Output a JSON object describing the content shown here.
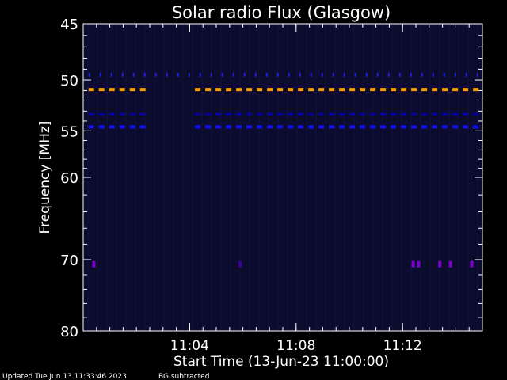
{
  "chart_data": {
    "type": "heatmap",
    "title": "Solar radio Flux (Glasgow)",
    "ylabel": "Frequency [MHz]",
    "xlabel": "Start Time (13-Jun-23 11:00:00)",
    "y_scale": "log",
    "y_axis_direction": "inverted",
    "ylim": [
      45,
      80
    ],
    "y_ticks": [
      45,
      50,
      55,
      60,
      70,
      80
    ],
    "y_tick_labels": [
      "45",
      "50",
      "55",
      "60",
      "70",
      "80"
    ],
    "y_minor_ticks": [
      46,
      47,
      48,
      49,
      51,
      52,
      53,
      54,
      56,
      57,
      58,
      59,
      62,
      64,
      66,
      68,
      72,
      74,
      76,
      78
    ],
    "xlim_minutes": [
      0,
      15
    ],
    "x_ticks": [
      4,
      8,
      12
    ],
    "x_tick_labels": [
      "11:04",
      "11:08",
      "11:12"
    ],
    "x_minor_step_minutes": 0.5,
    "background_color": "#0b0b2c",
    "bands": [
      {
        "frequency_mhz": 50.9,
        "segments_minutes": [
          [
            0.2,
            2.5
          ],
          [
            4.2,
            15.0
          ]
        ],
        "color": "#ff9900",
        "style": "dashed-thick"
      },
      {
        "frequency_mhz": 53.3,
        "segments_minutes": [
          [
            0.2,
            2.5
          ],
          [
            4.2,
            15.0
          ]
        ],
        "color": "#0000cc",
        "style": "dashed"
      },
      {
        "frequency_mhz": 54.6,
        "segments_minutes": [
          [
            0.2,
            2.5
          ],
          [
            4.2,
            15.0
          ]
        ],
        "color": "#1010ff",
        "style": "dashed-thick"
      },
      {
        "frequency_mhz": 49.5,
        "segments_minutes": [
          [
            0.2,
            15.0
          ]
        ],
        "color": "#2020e0",
        "style": "sparse-marks"
      }
    ],
    "points": [
      {
        "t": 0.4,
        "f": 70.6,
        "color": "#7a00d0"
      },
      {
        "t": 5.9,
        "f": 70.6,
        "color": "#3c00a0"
      },
      {
        "t": 12.4,
        "f": 70.6,
        "color": "#7a00d0"
      },
      {
        "t": 12.6,
        "f": 70.6,
        "color": "#7a00d0"
      },
      {
        "t": 13.4,
        "f": 70.6,
        "color": "#7a00d0"
      },
      {
        "t": 13.8,
        "f": 70.6,
        "color": "#7a00d0"
      },
      {
        "t": 14.6,
        "f": 70.6,
        "color": "#7a00d0"
      }
    ],
    "colors": {
      "axis": "#ffffff",
      "text": "#ffffff"
    }
  },
  "footer": {
    "updated": "Updated Tue Jun 13 11:33:46 2023",
    "note": "BG subtracted"
  }
}
